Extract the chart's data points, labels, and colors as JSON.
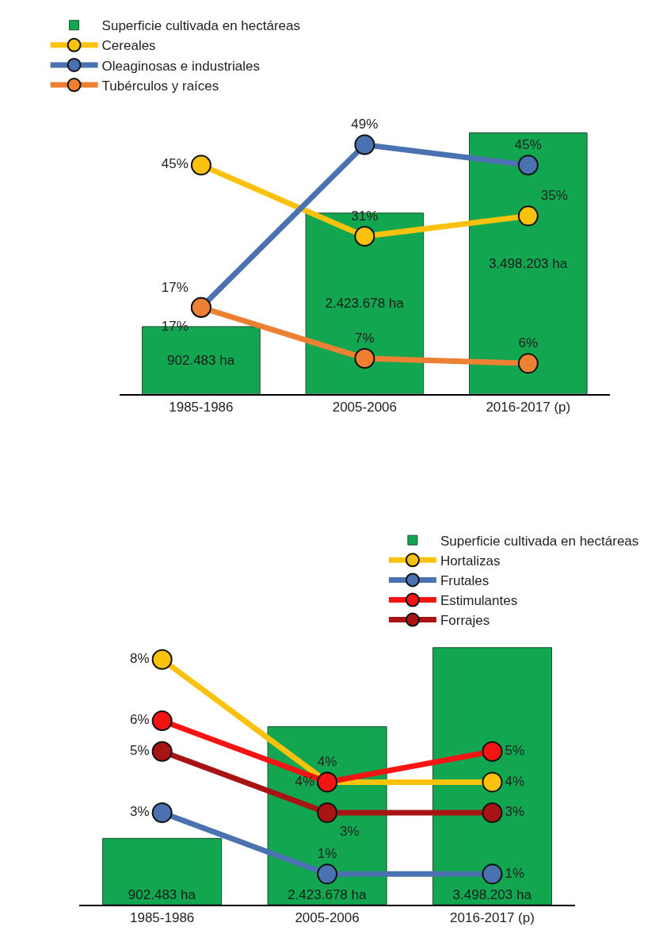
{
  "chart_data": [
    {
      "type": "bar",
      "categories": [
        "1985-1986",
        "2005-2006",
        "2016-2017 (p)"
      ],
      "tick_labels": "x",
      "legend": "top left",
      "marker": "circle",
      "series": [
        {
          "name": "Superficie cultivada en hectáreas",
          "color": "#13a650",
          "values": [
            902483,
            2423678,
            3498203
          ],
          "value_labels": [
            "902.483 ha",
            "2.423.678 ha",
            "3.498.203 ha"
          ]
        },
        {
          "type": "line",
          "axis": "y2",
          "name": "Cereales",
          "color": "#fbc20d",
          "values": [
            45,
            31,
            35
          ],
          "value_labels": [
            "45%",
            "31%",
            "35%"
          ]
        },
        {
          "type": "line",
          "axis": "y2",
          "name": "Oleaginosas e industriales",
          "color": "#4a72b0",
          "values": [
            17,
            49,
            45
          ],
          "value_labels": [
            "17%",
            "49%",
            "45%"
          ]
        },
        {
          "type": "line",
          "axis": "y2",
          "name": "Tubérculos y raíces",
          "color": "#ed8032",
          "values": [
            17,
            7,
            6
          ],
          "value_labels": [
            "17%",
            "7%",
            "6%"
          ]
        }
      ]
    },
    {
      "type": "bar",
      "categories": [
        "1985-1986",
        "2005-2006",
        "2016-2017 (p)"
      ],
      "tick_labels": "x",
      "legend": "top right",
      "marker": "circle",
      "series": [
        {
          "name": "Superficie cultivada en hectáreas",
          "color": "#13a650",
          "values": [
            902483,
            2423678,
            3498203
          ],
          "value_labels": [
            "902.483 ha",
            "2.423.678 ha",
            "3.498.203 ha"
          ]
        },
        {
          "type": "line",
          "axis": "y2",
          "name": "Hortalizas",
          "color": "#fbc20d",
          "values": [
            8,
            4,
            4
          ],
          "value_labels": [
            "8%",
            "4%",
            "4%"
          ]
        },
        {
          "type": "line",
          "axis": "y2",
          "name": "Frutales",
          "color": "#4a72b0",
          "values": [
            3,
            1,
            1
          ],
          "value_labels": [
            "3%",
            "1%",
            "1%"
          ]
        },
        {
          "type": "line",
          "axis": "y2",
          "name": "Estimulantes",
          "color": "#f41414",
          "values": [
            6,
            4,
            5
          ],
          "value_labels": [
            "6%",
            "4%",
            "5%"
          ]
        },
        {
          "type": "line",
          "axis": "y2",
          "name": "Forrajes",
          "color": "#a81414",
          "values": [
            5,
            3,
            3
          ],
          "value_labels": [
            "5%",
            "3%",
            "3%"
          ]
        }
      ]
    }
  ]
}
